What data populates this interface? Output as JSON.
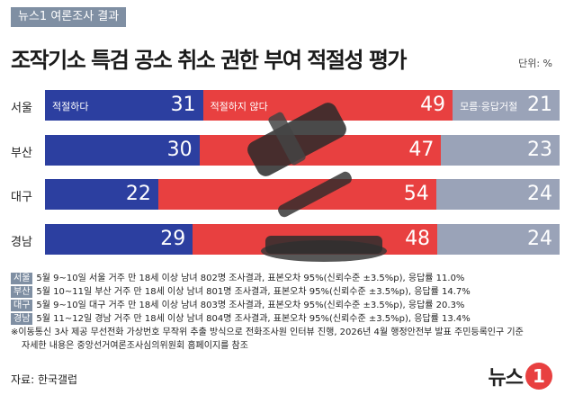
{
  "header": {
    "tag": "뉴스1 여론조사 결과",
    "title": "조작기소 특검 공소 취소 권한 부여 적절성 평가",
    "unit": "단위: %"
  },
  "colors": {
    "appropriate": "#2c3fa0",
    "not_appropriate": "#e84040",
    "dont_know": "#9aa3b8"
  },
  "chart_data": {
    "type": "bar",
    "stacked": true,
    "orientation": "horizontal",
    "categories": [
      "서울",
      "부산",
      "대구",
      "경남"
    ],
    "series": [
      {
        "name": "적절하다",
        "values": [
          31,
          30,
          22,
          29
        ]
      },
      {
        "name": "적절하지 않다",
        "values": [
          49,
          47,
          54,
          48
        ]
      },
      {
        "name": "모름·응답거절",
        "values": [
          21,
          23,
          24,
          24
        ]
      }
    ]
  },
  "notes": [
    {
      "region": "서울",
      "text": "5월 9~10일 서울 거주 만 18세 이상 남녀 802명 조사결과, 표본오차 95%(신뢰수준 ±3.5%p), 응답률 11.0%"
    },
    {
      "region": "부산",
      "text": "5월 10~11일 부산 거주 만 18세 이상 남녀 801명 조사결과, 표본오차 95%(신뢰수준 ±3.5%p), 응답률 14.7%"
    },
    {
      "region": "대구",
      "text": "5월 9~10일 대구 거주 만 18세 이상 남녀 803명 조사결과, 표본오차 95%(신뢰수준 ±3.5%p), 응답률 20.3%"
    },
    {
      "region": "경남",
      "text": "5월 11~12일 경남 거주 만 18세 이상 남녀 804명 조사결과, 표본오차 95%(신뢰수준 ±3.5%p), 응답률 13.4%"
    }
  ],
  "footnote1": "※이동통신 3사 제공 무선전화 가상번호 무작위 추출 방식으로 전화조사원 인터뷰 진행, 2026년 4월 행정안전부 발표 주민등록인구 기준",
  "footnote2": "자세한 내용은 중앙선거여론조사심의위원회 홈페이지를 참조",
  "source": "자료: 한국갤럽",
  "logo": {
    "text": "뉴스",
    "badge": "1"
  }
}
